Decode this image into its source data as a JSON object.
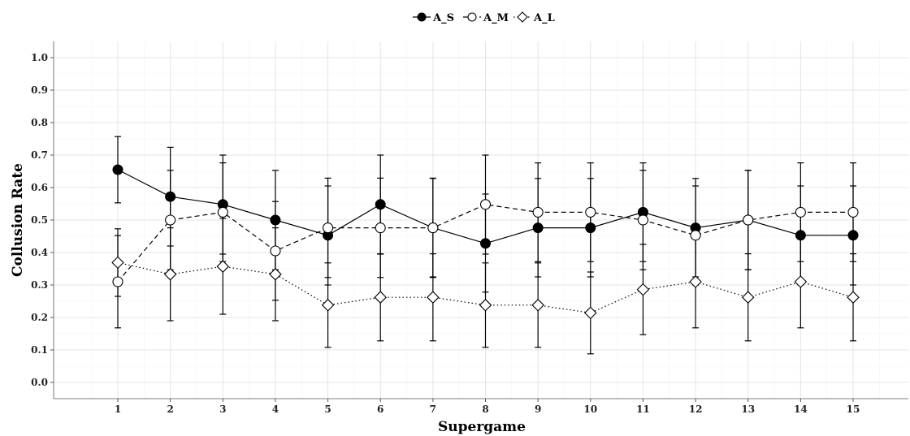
{
  "chart_data": {
    "type": "line",
    "xlabel": "Supergame",
    "ylabel": "Collusion Rate",
    "x": [
      1,
      2,
      3,
      4,
      5,
      6,
      7,
      8,
      9,
      10,
      11,
      12,
      13,
      14,
      15
    ],
    "xlim": [
      0,
      16
    ],
    "ylim": [
      -0.05,
      1.05
    ],
    "yticks": [
      0.0,
      0.1,
      0.2,
      0.3,
      0.4,
      0.5,
      0.6,
      0.7,
      0.8,
      0.9,
      1.0
    ],
    "ytick_labels": [
      "0.0",
      "0.1",
      "0.2",
      "0.3",
      "0.4",
      "0.5",
      "0.6",
      "0.7",
      "0.8",
      "0.9",
      "1.0"
    ],
    "grid": true,
    "legend_position": "top",
    "error_bars": true,
    "series": [
      {
        "name": "A_S",
        "line_style": "solid",
        "marker": "filled-circle",
        "values": [
          0.655,
          0.572,
          0.548,
          0.5,
          0.453,
          0.548,
          0.476,
          0.428,
          0.476,
          0.476,
          0.524,
          0.476,
          0.5,
          0.453,
          0.453
        ],
        "lower": [
          0.553,
          0.42,
          0.395,
          0.347,
          0.3,
          0.395,
          0.325,
          0.278,
          0.325,
          0.325,
          0.372,
          0.325,
          0.347,
          0.3,
          0.3
        ],
        "upper": [
          0.757,
          0.724,
          0.7,
          0.653,
          0.605,
          0.7,
          0.628,
          0.58,
          0.628,
          0.628,
          0.676,
          0.628,
          0.653,
          0.605,
          0.605
        ]
      },
      {
        "name": "A_M",
        "line_style": "dashed",
        "marker": "open-circle",
        "values": [
          0.31,
          0.5,
          0.524,
          0.405,
          0.476,
          0.476,
          0.476,
          0.548,
          0.524,
          0.524,
          0.5,
          0.453,
          0.5,
          0.524,
          0.524
        ],
        "lower": [
          0.168,
          0.347,
          0.372,
          0.253,
          0.323,
          0.323,
          0.323,
          0.395,
          0.372,
          0.372,
          0.347,
          0.3,
          0.347,
          0.372,
          0.372
        ],
        "upper": [
          0.452,
          0.653,
          0.676,
          0.557,
          0.629,
          0.629,
          0.629,
          0.7,
          0.676,
          0.676,
          0.653,
          0.605,
          0.653,
          0.676,
          0.676
        ]
      },
      {
        "name": "A_L",
        "line_style": "dotted",
        "marker": "open-diamond",
        "values": [
          0.369,
          0.333,
          0.357,
          0.333,
          0.238,
          0.262,
          0.262,
          0.238,
          0.238,
          0.214,
          0.286,
          0.31,
          0.262,
          0.31,
          0.262
        ],
        "lower": [
          0.265,
          0.19,
          0.21,
          0.19,
          0.108,
          0.128,
          0.128,
          0.108,
          0.108,
          0.088,
          0.147,
          0.168,
          0.128,
          0.168,
          0.128
        ],
        "upper": [
          0.473,
          0.476,
          0.505,
          0.476,
          0.368,
          0.396,
          0.396,
          0.368,
          0.368,
          0.34,
          0.425,
          0.452,
          0.396,
          0.452,
          0.396
        ]
      }
    ]
  }
}
